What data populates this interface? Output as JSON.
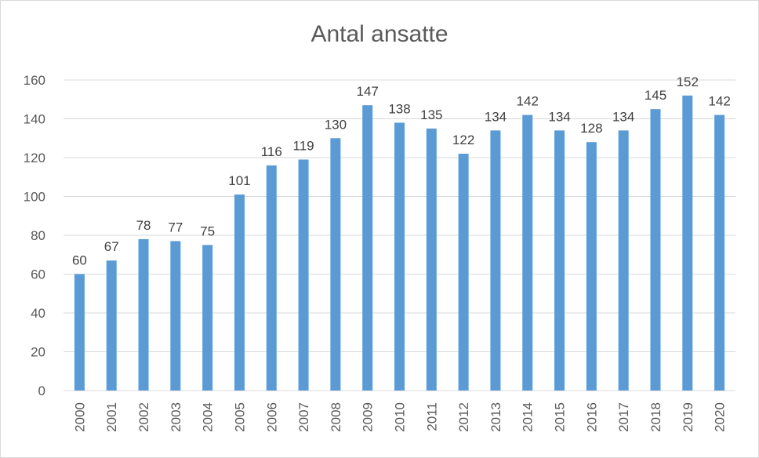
{
  "chart_data": {
    "type": "bar",
    "title": "Antal ansatte",
    "xlabel": "",
    "ylabel": "",
    "categories": [
      "2000",
      "2001",
      "2002",
      "2003",
      "2004",
      "2005",
      "2006",
      "2007",
      "2008",
      "2009",
      "2010",
      "2011",
      "2012",
      "2013",
      "2014",
      "2015",
      "2016",
      "2017",
      "2018",
      "2019",
      "2020"
    ],
    "series": [
      {
        "values": [
          60,
          67,
          78,
          77,
          75,
          101,
          116,
          119,
          130,
          147,
          138,
          135,
          122,
          134,
          142,
          134,
          128,
          134,
          145,
          152,
          142
        ]
      }
    ],
    "ylim": [
      0,
      160
    ],
    "yticks": [
      0,
      20,
      40,
      60,
      80,
      100,
      120,
      140,
      160
    ],
    "grid": true,
    "data_labels": true,
    "bar_color": "#5b9bd5",
    "gridline_color": "#d9d9d9"
  }
}
